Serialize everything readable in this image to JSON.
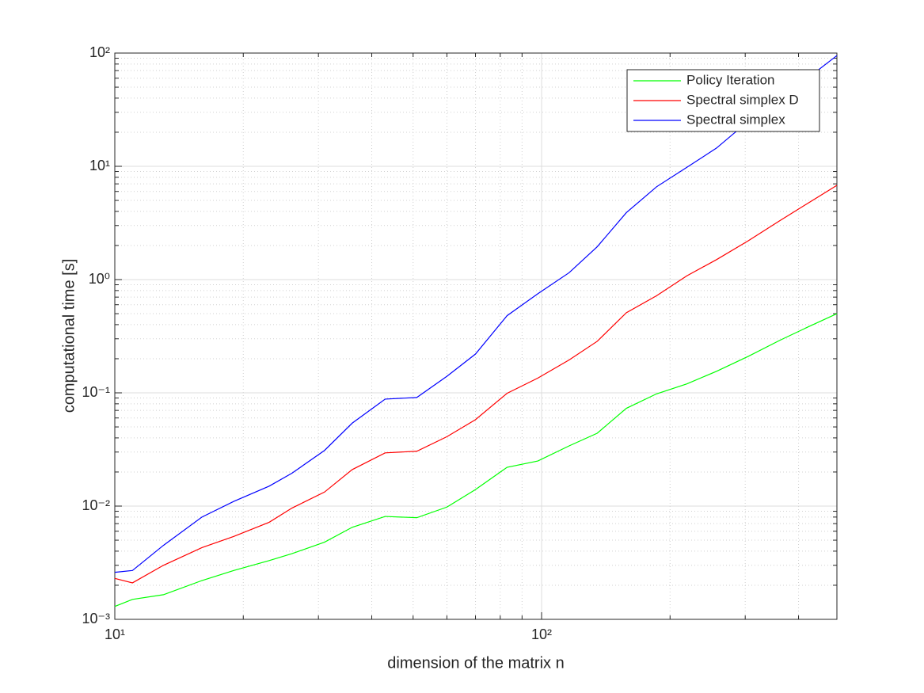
{
  "chart_data": {
    "type": "line",
    "xlabel": "dimension of the matrix n",
    "ylabel": "computational time [s]",
    "x": [
      10,
      11,
      13,
      16,
      19,
      23,
      26,
      31,
      36,
      43,
      51,
      60,
      70,
      83,
      98,
      116,
      135,
      158,
      186,
      219,
      257,
      305,
      361,
      420,
      492
    ],
    "series": [
      {
        "name": "Policy Iteration",
        "color": "#00ff00",
        "values": [
          0.0013,
          0.0015,
          0.00165,
          0.0022,
          0.0027,
          0.0033,
          0.0038,
          0.0048,
          0.0065,
          0.0081,
          0.0079,
          0.0098,
          0.014,
          0.022,
          0.025,
          0.034,
          0.044,
          0.073,
          0.098,
          0.12,
          0.155,
          0.21,
          0.29,
          0.38,
          0.5
        ]
      },
      {
        "name": "Spectral simplex D",
        "color": "#ff0000",
        "values": [
          0.0023,
          0.0021,
          0.003,
          0.0043,
          0.0054,
          0.0072,
          0.0096,
          0.0133,
          0.021,
          0.0295,
          0.0305,
          0.041,
          0.058,
          0.099,
          0.135,
          0.195,
          0.285,
          0.51,
          0.72,
          1.08,
          1.5,
          2.2,
          3.3,
          4.7,
          6.8
        ]
      },
      {
        "name": "Spectral simplex",
        "color": "#0000ff",
        "values": [
          0.0026,
          0.0027,
          0.0045,
          0.008,
          0.011,
          0.015,
          0.0195,
          0.031,
          0.054,
          0.088,
          0.091,
          0.14,
          0.22,
          0.48,
          0.75,
          1.15,
          1.95,
          3.9,
          6.6,
          9.8,
          14.5,
          25,
          40,
          60,
          95
        ]
      }
    ],
    "xscale": "log",
    "yscale": "log",
    "xlim": [
      10,
      492
    ],
    "ylim": [
      0.001,
      100
    ],
    "xticks": [
      {
        "value": 10,
        "label": "10¹"
      },
      {
        "value": 100,
        "label": "10²"
      }
    ],
    "yticks": [
      {
        "value": 0.001,
        "label": "10⁻³"
      },
      {
        "value": 0.01,
        "label": "10⁻²"
      },
      {
        "value": 0.1,
        "label": "10⁻¹"
      },
      {
        "value": 1,
        "label": "10⁰"
      },
      {
        "value": 10,
        "label": "10¹"
      },
      {
        "value": 100,
        "label": "10²"
      }
    ],
    "grid": true,
    "minor_grid": true,
    "legend": "upper right"
  }
}
